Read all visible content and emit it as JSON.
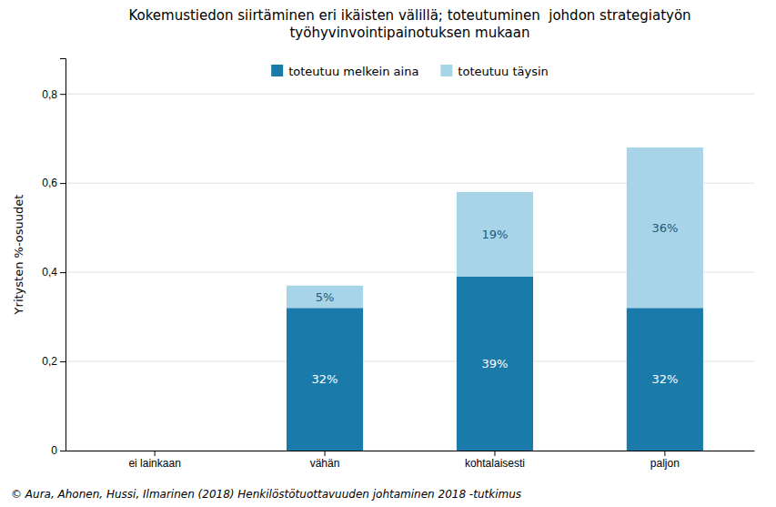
{
  "chart_data": {
    "type": "bar",
    "title": "Kokemustiedon siirtäminen eri ikäisten välillä; toteutuminen  johdon strategiatyön\ntyöhyvinvointipainotuksen mukaan",
    "categories": [
      "ei lainkaan",
      "vähän",
      "kohtalaisesti",
      "paljon"
    ],
    "series": [
      {
        "name": "toteutuu melkein aina",
        "color": "#1a7aaa",
        "values": [
          0,
          0.32,
          0.39,
          0.32
        ],
        "value_labels": [
          null,
          "32%",
          "39%",
          "32%"
        ]
      },
      {
        "name": "toteutuu täysin",
        "color": "#a8d4e8",
        "values": [
          0,
          0.05,
          0.19,
          0.36
        ],
        "value_labels": [
          null,
          "5%",
          "19%",
          "36%"
        ]
      }
    ],
    "stacked": true,
    "data_labels": true,
    "ylabel": "Yritysten %-osuudet",
    "ylim": [
      0,
      0.88
    ],
    "yticks": [
      0,
      {
        "value": 0.2,
        "label": "0,2"
      },
      {
        "value": 0.4,
        "label": "0,4"
      },
      {
        "value": 0.6,
        "label": "0,6"
      },
      {
        "value": 0.8,
        "label": "0,8"
      }
    ],
    "grid": true,
    "legend": "top",
    "annotations": [
      "© Aura, Ahonen, Hussi, Ilmarinen (2018) Henkilöstötuottavuuden johtaminen 2018 -tutkimus"
    ]
  }
}
